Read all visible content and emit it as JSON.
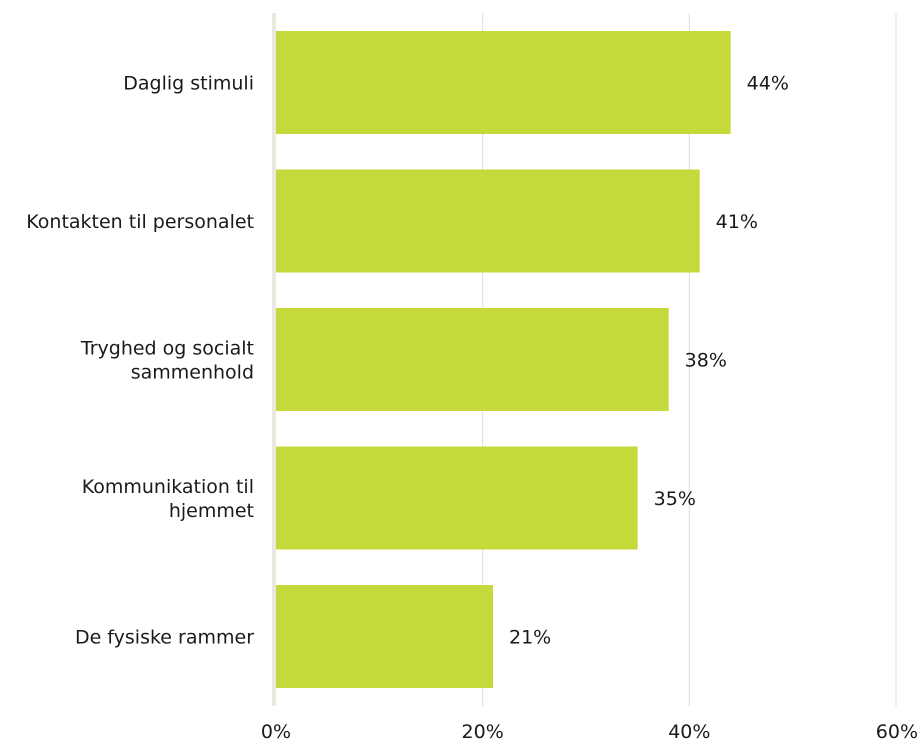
{
  "chart_data": {
    "type": "bar",
    "orientation": "horizontal",
    "title": "",
    "xlabel": "",
    "ylabel": "",
    "categories": [
      [
        "Daglig stimuli"
      ],
      [
        "Kontakten til personalet"
      ],
      [
        "Tryghed og socialt",
        "sammenhold"
      ],
      [
        "Kommunikation til",
        "hjemmet"
      ],
      [
        "De fysiske rammer"
      ]
    ],
    "values": [
      44,
      41,
      38,
      35,
      21
    ],
    "value_labels": [
      "44%",
      "41%",
      "38%",
      "35%",
      "21%"
    ],
    "xlim": [
      0,
      60
    ],
    "xticks": [
      0,
      20,
      40,
      60
    ],
    "xtick_labels": [
      "0%",
      "20%",
      "40%",
      "60%"
    ],
    "grid": true,
    "legend": "none",
    "colors": {
      "bar": "#c5d93a",
      "grid": "#dcdcdc",
      "axis": "#ece8df",
      "text": "#1a1a1a"
    }
  }
}
